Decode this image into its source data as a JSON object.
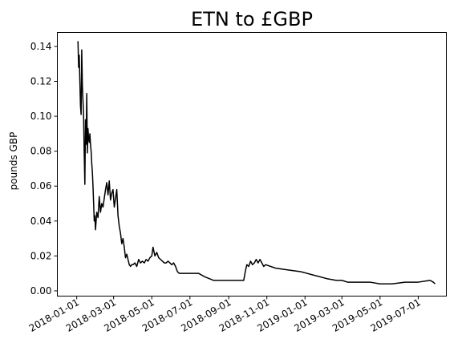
{
  "chart_data": {
    "type": "line",
    "title": "ETN to £GBP",
    "xlabel": "",
    "ylabel": "pounds GBP",
    "grid": false,
    "legend": "none",
    "line_color": "#000000",
    "xlim": [
      "2017-12-01",
      "2019-08-15"
    ],
    "ylim": [
      -0.003,
      0.148
    ],
    "x_ticks": [
      "2018-01-01",
      "2018-03-01",
      "2018-05-01",
      "2018-07-01",
      "2018-09-01",
      "2018-11-01",
      "2019-01-01",
      "2019-03-01",
      "2019-05-01",
      "2019-07-01"
    ],
    "y_ticks": [
      "0.00",
      "0.02",
      "0.04",
      "0.06",
      "0.08",
      "0.10",
      "0.12",
      "0.14"
    ],
    "series": [
      {
        "x": [
          "2018-01-03",
          "2018-01-04",
          "2018-01-05",
          "2018-01-06",
          "2018-01-07",
          "2018-01-08",
          "2018-01-09",
          "2018-01-10",
          "2018-01-11",
          "2018-01-12",
          "2018-01-13",
          "2018-01-14",
          "2018-01-15",
          "2018-01-16",
          "2018-01-17",
          "2018-01-18",
          "2018-01-19",
          "2018-01-20",
          "2018-01-21",
          "2018-01-22",
          "2018-01-23",
          "2018-01-24",
          "2018-01-25",
          "2018-01-26",
          "2018-01-27",
          "2018-01-28",
          "2018-01-29",
          "2018-01-30",
          "2018-01-31",
          "2018-02-02",
          "2018-02-04",
          "2018-02-06",
          "2018-02-08",
          "2018-02-10",
          "2018-02-12",
          "2018-02-14",
          "2018-02-16",
          "2018-02-18",
          "2018-02-20",
          "2018-02-22",
          "2018-02-24",
          "2018-02-26",
          "2018-02-28",
          "2018-03-02",
          "2018-03-04",
          "2018-03-06",
          "2018-03-08",
          "2018-03-10",
          "2018-03-12",
          "2018-03-14",
          "2018-03-16",
          "2018-03-18",
          "2018-03-20",
          "2018-03-22",
          "2018-03-24",
          "2018-03-26",
          "2018-03-28",
          "2018-03-30",
          "2018-04-01",
          "2018-04-04",
          "2018-04-07",
          "2018-04-10",
          "2018-04-13",
          "2018-04-16",
          "2018-04-19",
          "2018-04-22",
          "2018-04-25",
          "2018-04-28",
          "2018-05-01",
          "2018-05-03",
          "2018-05-06",
          "2018-05-09",
          "2018-05-12",
          "2018-05-15",
          "2018-05-18",
          "2018-05-21",
          "2018-05-24",
          "2018-05-27",
          "2018-05-30",
          "2018-06-02",
          "2018-06-05",
          "2018-06-08",
          "2018-06-11",
          "2018-06-14",
          "2018-06-20",
          "2018-06-27",
          "2018-07-05",
          "2018-07-15",
          "2018-07-25",
          "2018-08-01",
          "2018-08-08",
          "2018-08-15",
          "2018-08-25",
          "2018-09-05",
          "2018-09-15",
          "2018-09-25",
          "2018-09-28",
          "2018-09-30",
          "2018-10-03",
          "2018-10-06",
          "2018-10-09",
          "2018-10-12",
          "2018-10-15",
          "2018-10-18",
          "2018-10-21",
          "2018-10-24",
          "2018-10-27",
          "2018-10-30",
          "2018-11-15",
          "2018-12-05",
          "2018-12-25",
          "2019-01-15",
          "2019-02-05",
          "2019-02-20",
          "2019-03-01",
          "2019-03-10",
          "2019-03-20",
          "2019-04-01",
          "2019-04-15",
          "2019-05-01",
          "2019-05-20",
          "2019-06-10",
          "2019-07-01",
          "2019-07-20",
          "2019-07-25",
          "2019-07-28"
        ],
        "values": [
          0.143,
          0.128,
          0.135,
          0.12,
          0.106,
          0.101,
          0.138,
          0.118,
          0.109,
          0.1,
          0.078,
          0.061,
          0.098,
          0.084,
          0.113,
          0.079,
          0.093,
          0.087,
          0.085,
          0.09,
          0.084,
          0.08,
          0.073,
          0.068,
          0.06,
          0.05,
          0.04,
          0.043,
          0.035,
          0.045,
          0.042,
          0.054,
          0.045,
          0.05,
          0.048,
          0.053,
          0.058,
          0.062,
          0.055,
          0.063,
          0.052,
          0.056,
          0.058,
          0.048,
          0.053,
          0.058,
          0.043,
          0.037,
          0.033,
          0.027,
          0.03,
          0.025,
          0.019,
          0.021,
          0.018,
          0.015,
          0.014,
          0.015,
          0.015,
          0.016,
          0.014,
          0.018,
          0.016,
          0.017,
          0.016,
          0.018,
          0.017,
          0.019,
          0.02,
          0.025,
          0.02,
          0.022,
          0.019,
          0.018,
          0.017,
          0.016,
          0.016,
          0.017,
          0.016,
          0.015,
          0.016,
          0.014,
          0.011,
          0.01,
          0.01,
          0.01,
          0.01,
          0.01,
          0.008,
          0.007,
          0.006,
          0.006,
          0.006,
          0.006,
          0.006,
          0.006,
          0.012,
          0.015,
          0.014,
          0.017,
          0.015,
          0.016,
          0.018,
          0.016,
          0.018,
          0.016,
          0.014,
          0.015,
          0.013,
          0.012,
          0.011,
          0.009,
          0.007,
          0.006,
          0.006,
          0.005,
          0.005,
          0.005,
          0.005,
          0.004,
          0.004,
          0.005,
          0.005,
          0.006,
          0.005,
          0.004
        ]
      }
    ]
  }
}
